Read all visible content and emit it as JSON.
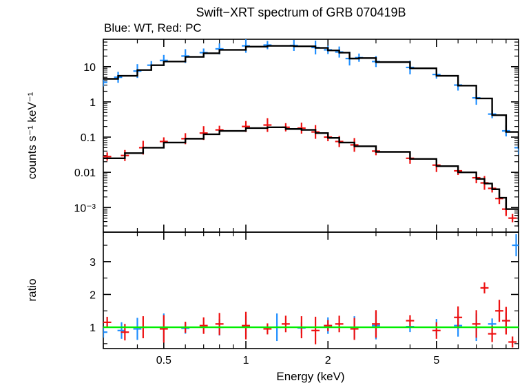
{
  "chart_data": {
    "type": "scatter",
    "title": "Swift−XRT spectrum of GRB 070419B",
    "subtitle": "Blue: WT, Red: PC",
    "xlabel": "Energy (keV)",
    "x_scale": "log",
    "xlim": [
      0.3,
      10.0
    ],
    "x_ticks": [
      0.5,
      1,
      2,
      5
    ],
    "x_tick_labels": [
      "0.5",
      "1",
      "2",
      "5"
    ],
    "panels": [
      {
        "id": "spectrum",
        "ylabel": "counts s⁻¹ keV⁻¹",
        "y_scale": "log",
        "ylim": [
          0.0002,
          60
        ],
        "y_ticks": [
          0.001,
          0.01,
          0.1,
          1,
          10
        ],
        "y_tick_labels": [
          "10⁻³",
          "0.01",
          "0.1",
          "1",
          "10"
        ],
        "series": [
          {
            "color": "#1f8fff",
            "kind": "data",
            "x": [
              0.3,
              0.34,
              0.4,
              0.45,
              0.5,
              0.6,
              0.7,
              0.8,
              1.0,
              1.2,
              1.5,
              1.8,
              2.0,
              2.2,
              2.4,
              2.6,
              3.0,
              4.0,
              5.0,
              6.0,
              7.0,
              8.0,
              9.0,
              10.0
            ],
            "y": [
              3.6,
              5.0,
              7.5,
              11,
              15,
              20,
              25,
              32,
              39,
              41,
              40,
              35,
              30,
              26,
              17,
              18,
              14,
              9.5,
              6.0,
              3.0,
              1.3,
              0.45,
              0.15,
              0.05
            ]
          },
          {
            "color": "#000000",
            "kind": "model",
            "x": [
              0.3,
              0.34,
              0.4,
              0.45,
              0.5,
              0.6,
              0.7,
              0.8,
              1.0,
              1.2,
              1.5,
              1.8,
              2.0,
              2.2,
              2.4,
              2.6,
              3.0,
              4.0,
              5.0,
              6.0,
              7.0,
              8.0,
              9.0,
              10.0
            ],
            "y": [
              4.5,
              5.5,
              8.0,
              11,
              14,
              19,
              24,
              30,
              37,
              39,
              38,
              34,
              29,
              25,
              17,
              17.5,
              13.5,
              9.0,
              5.5,
              2.9,
              1.25,
              0.42,
              0.14,
              0.05
            ]
          },
          {
            "color": "#ee1111",
            "kind": "data",
            "x": [
              0.31,
              0.36,
              0.42,
              0.5,
              0.6,
              0.7,
              0.8,
              1.0,
              1.2,
              1.4,
              1.6,
              1.8,
              2.0,
              2.2,
              2.5,
              3.0,
              4.0,
              5.0,
              6.0,
              7.0,
              7.5,
              8.0,
              8.5,
              9.0,
              9.5
            ],
            "y": [
              0.028,
              0.03,
              0.05,
              0.075,
              0.09,
              0.13,
              0.16,
              0.2,
              0.22,
              0.19,
              0.18,
              0.14,
              0.1,
              0.075,
              0.06,
              0.04,
              0.025,
              0.016,
              0.011,
              0.007,
              0.005,
              0.0035,
              0.0018,
              0.0009,
              0.0005
            ]
          },
          {
            "color": "#000000",
            "kind": "model",
            "x": [
              0.3,
              0.36,
              0.42,
              0.5,
              0.6,
              0.7,
              0.8,
              1.0,
              1.2,
              1.4,
              1.6,
              1.8,
              2.0,
              2.2,
              2.5,
              3.0,
              4.0,
              5.0,
              6.0,
              7.0,
              7.5,
              8.0,
              8.5,
              9.0,
              10.0
            ],
            "y": [
              0.025,
              0.035,
              0.05,
              0.07,
              0.09,
              0.12,
              0.15,
              0.18,
              0.19,
              0.17,
              0.16,
              0.13,
              0.095,
              0.07,
              0.055,
              0.038,
              0.024,
              0.015,
              0.01,
              0.0065,
              0.0048,
              0.0033,
              0.0019,
              0.0009,
              0.0003
            ]
          }
        ]
      },
      {
        "id": "ratio",
        "ylabel": "ratio",
        "y_scale": "linear",
        "ylim": [
          0.35,
          3.9
        ],
        "y_ticks": [
          1,
          2,
          3
        ],
        "y_tick_labels": [
          "1",
          "2",
          "3"
        ],
        "reference_line": {
          "y": 1,
          "color": "#00ee00"
        },
        "series": [
          {
            "color": "#1f8fff",
            "kind": "ratio",
            "x": [
              0.3,
              0.35,
              0.4,
              0.5,
              0.6,
              0.8,
              1.0,
              1.3,
              1.6,
              2.0,
              2.5,
              3.0,
              4.0,
              5.0,
              6.0,
              7.0,
              8.0,
              9.0,
              9.8
            ],
            "y": [
              0.85,
              0.9,
              0.95,
              1.0,
              0.97,
              1.0,
              1.02,
              1.0,
              0.98,
              1.05,
              1.0,
              1.05,
              1.02,
              1.0,
              1.05,
              1.0,
              1.1,
              1.2,
              3.5
            ]
          },
          {
            "color": "#ee1111",
            "kind": "ratio",
            "x": [
              0.31,
              0.36,
              0.42,
              0.5,
              0.6,
              0.7,
              0.8,
              1.0,
              1.2,
              1.4,
              1.6,
              1.8,
              2.0,
              2.2,
              2.5,
              3.0,
              4.0,
              5.0,
              6.0,
              7.0,
              7.5,
              8.0,
              8.5,
              9.0,
              9.5
            ],
            "y": [
              1.15,
              0.85,
              1.0,
              0.95,
              1.0,
              1.05,
              1.1,
              1.05,
              0.95,
              1.1,
              1.0,
              0.9,
              1.05,
              1.1,
              0.95,
              1.1,
              1.2,
              0.9,
              1.3,
              1.1,
              2.2,
              0.8,
              1.5,
              1.2,
              0.55
            ]
          }
        ]
      }
    ]
  }
}
